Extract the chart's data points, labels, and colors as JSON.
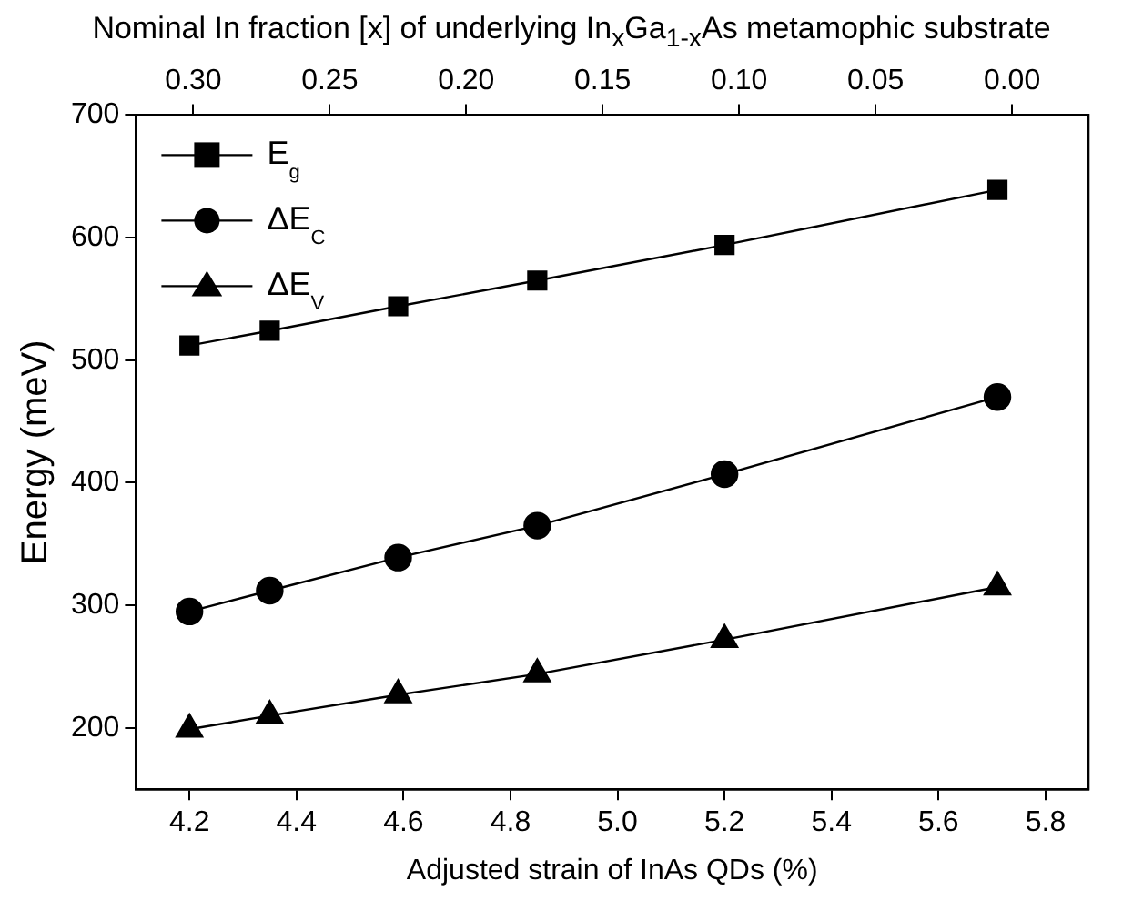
{
  "chart_data": {
    "type": "line",
    "x2label": "Nominal In fraction [x] of underlying In$_{x}$Ga$_{1-x}$As metamophic substrate",
    "xlabel": "Adjusted strain of InAs QDs (%)",
    "ylabel": "Energy (meV)",
    "x": [
      4.2,
      4.35,
      4.59,
      4.85,
      5.2,
      5.71
    ],
    "series": [
      {
        "name": "E$_{g}$",
        "color": "#000000",
        "marker": "square",
        "values": [
          512,
          524,
          544,
          565,
          594,
          639
        ]
      },
      {
        "name": "ΔE$_{C}$",
        "color": "#000000",
        "marker": "circle",
        "values": [
          295,
          312,
          339,
          365,
          407,
          470
        ]
      },
      {
        "name": "ΔE$_{V}$",
        "color": "#000000",
        "marker": "triangle",
        "values": [
          199,
          210,
          227,
          244,
          272,
          315
        ]
      }
    ],
    "xlim": [
      4.1,
      5.88
    ],
    "xticks": [
      4.2,
      4.4,
      4.6,
      4.8,
      {
        "value": 5,
        "label": "5.0"
      },
      5.2,
      5.4,
      5.6,
      5.8
    ],
    "x2lim": [
      0.321,
      -0.028
    ],
    "x2ticks": [
      {
        "value": 0.3,
        "label": "0.30"
      },
      {
        "value": 0.25,
        "label": "0.25"
      },
      {
        "value": 0.2,
        "label": "0.20"
      },
      {
        "value": 0.15,
        "label": "0.15"
      },
      {
        "value": 0.1,
        "label": "0.10"
      },
      {
        "value": 0.05,
        "label": "0.05"
      },
      {
        "value": 0,
        "label": "0.00"
      }
    ],
    "ylim": [
      150,
      700
    ],
    "yticks": [
      200,
      300,
      400,
      500,
      600,
      700
    ],
    "grid": false,
    "legend": "top left",
    "line_style": "solid"
  }
}
